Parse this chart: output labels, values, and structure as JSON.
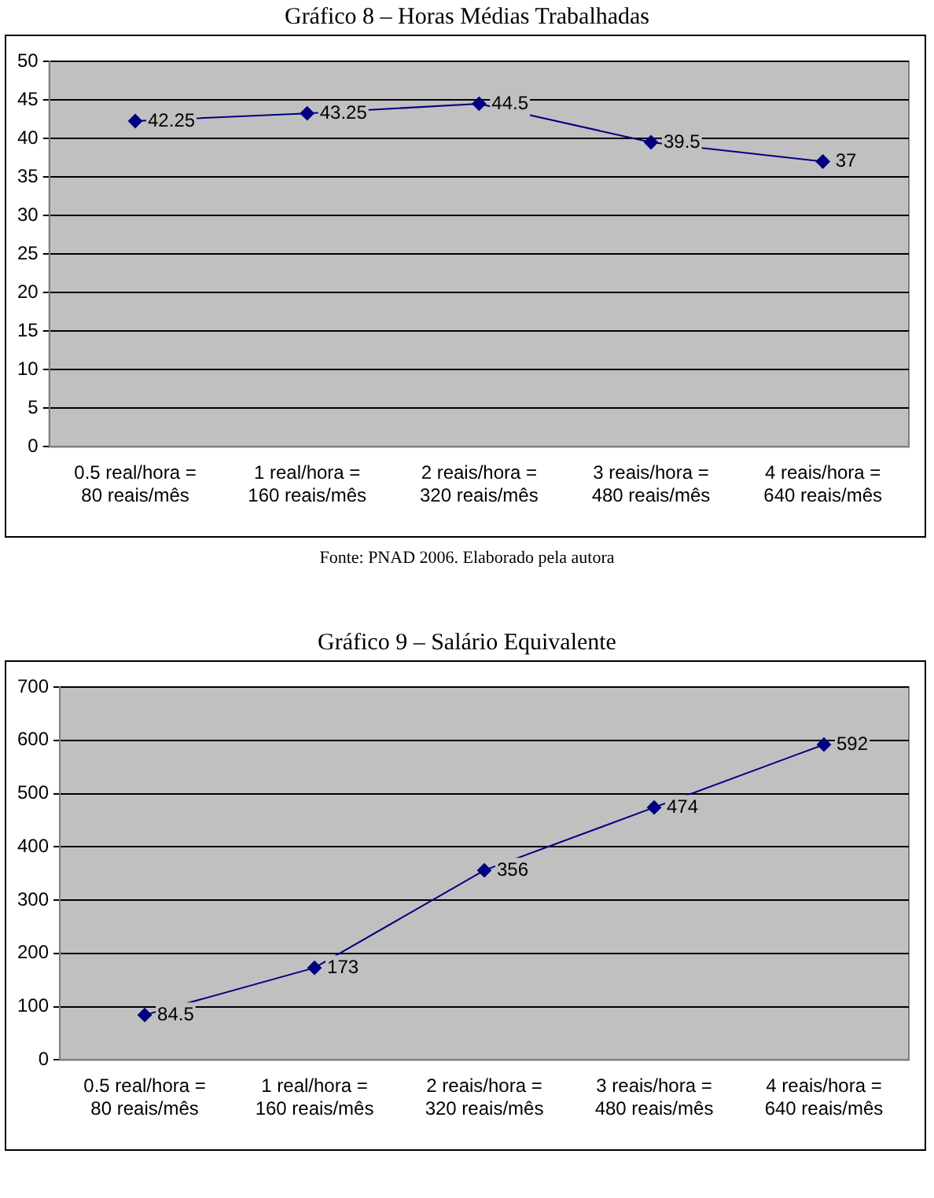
{
  "chart_data": [
    {
      "type": "line",
      "title": "Gráfico 8 – Horas Médias Trabalhadas",
      "categories": [
        "0.5 real/hora =\n80 reais/mês",
        "1 real/hora =\n160 reais/mês",
        "2 reais/hora =\n320 reais/mês",
        "3 reais/hora =\n480 reais/mês",
        "4 reais/hora =\n640 reais/mês"
      ],
      "series": [
        {
          "color": "#000080",
          "values": [
            42.25,
            43.25,
            44.5,
            39.5,
            37
          ]
        }
      ],
      "ylim": [
        0,
        50
      ],
      "yticks": [
        0,
        5,
        10,
        15,
        20,
        25,
        30,
        35,
        40,
        45,
        50
      ],
      "grid": "y",
      "legend": false,
      "marker": "diamond",
      "line_style": "solid",
      "data_labels": true,
      "annotations": [
        "Fonte: PNAD 2006. Elaborado pela autora"
      ]
    },
    {
      "type": "line",
      "title": "Gráfico 9 – Salário Equivalente",
      "categories": [
        "0.5 real/hora =\n80 reais/mês",
        "1 real/hora =\n160 reais/mês",
        "2 reais/hora =\n320 reais/mês",
        "3 reais/hora =\n480 reais/mês",
        "4 reais/hora =\n640 reais/mês"
      ],
      "series": [
        {
          "color": "#000080",
          "values": [
            84.5,
            173,
            356,
            474,
            592
          ]
        }
      ],
      "ylim": [
        0,
        700
      ],
      "yticks": [
        0,
        100,
        200,
        300,
        400,
        500,
        600,
        700
      ],
      "grid": "y",
      "legend": false,
      "marker": "diamond",
      "line_style": "solid",
      "data_labels": true
    }
  ]
}
